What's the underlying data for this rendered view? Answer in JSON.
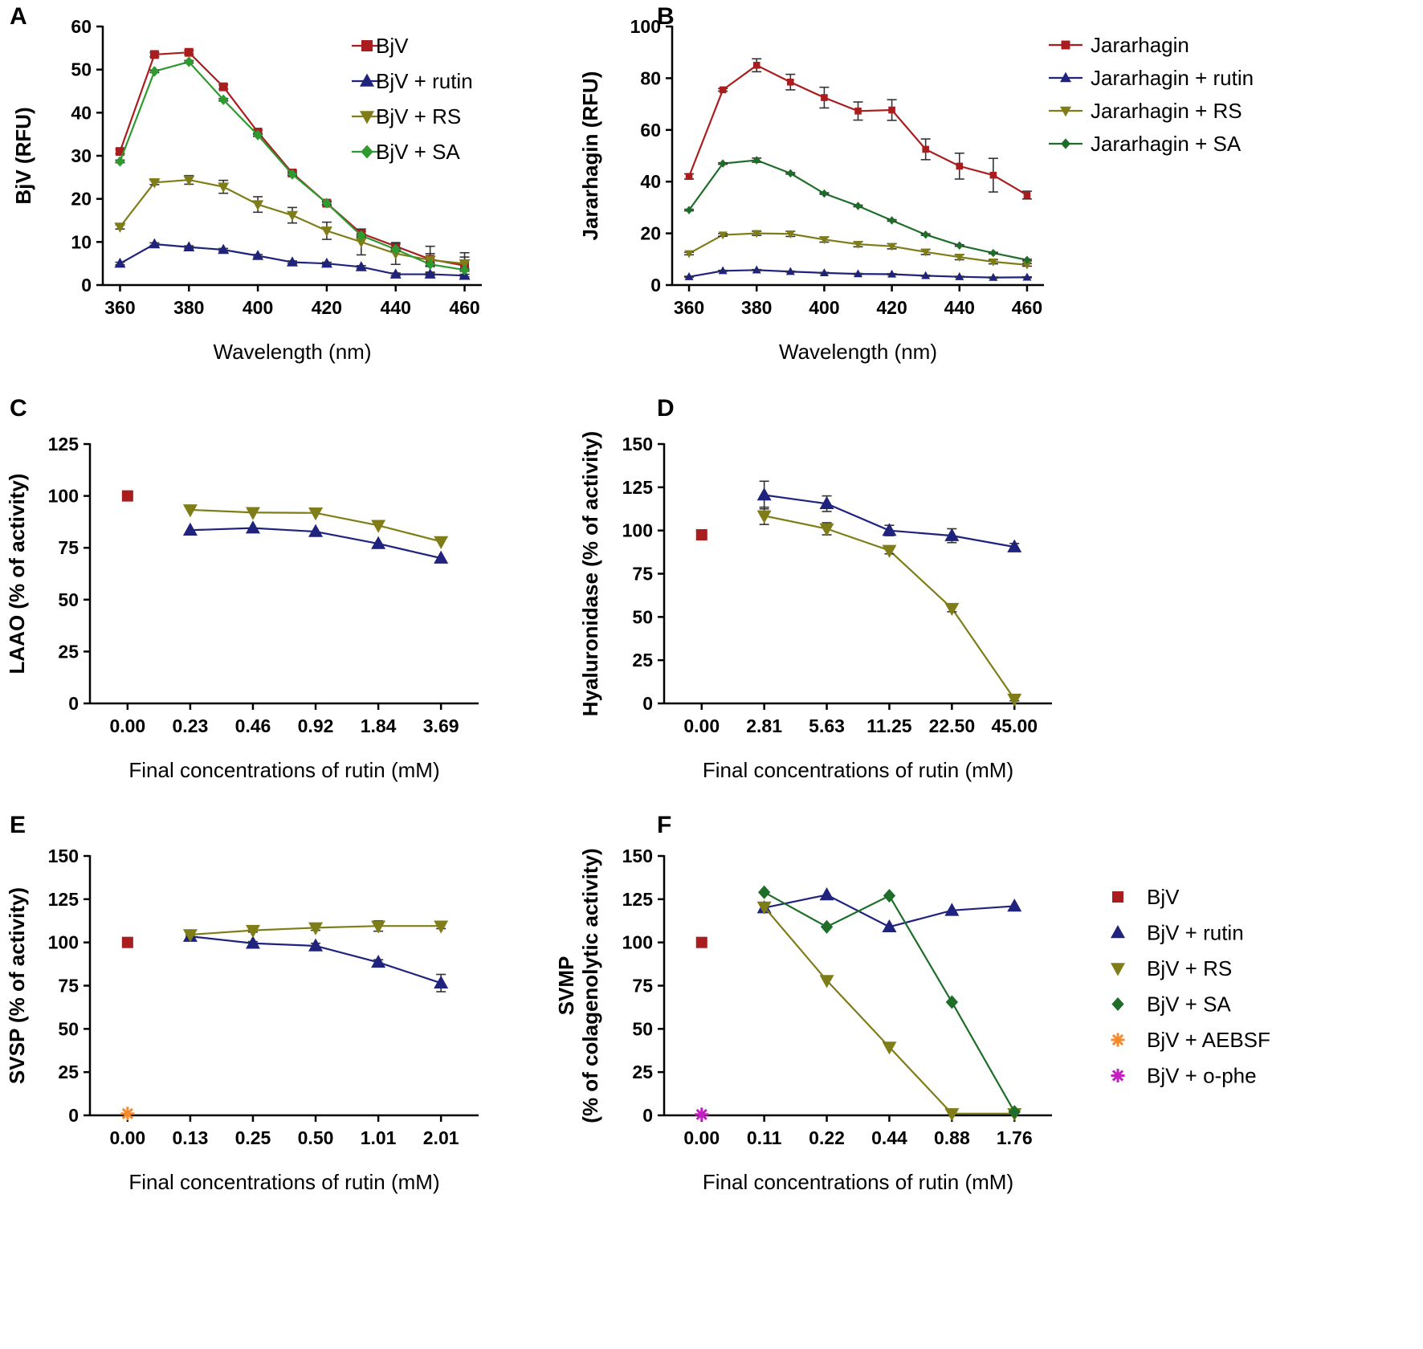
{
  "colors": {
    "BjV": "#AA1D1F",
    "rutin": "#1F237E",
    "RS": "#7E7D17",
    "SA": "#1E6E2A",
    "SA_bright": "#2E9A30",
    "AEBSF": "#F68B2C",
    "ophe": "#C21FC0"
  },
  "chart_data": [
    {
      "id": "A",
      "panel_label": "A",
      "type": "line",
      "ylabel": "BjV (RFU)",
      "xlabel": "Wavelength (nm)",
      "x": [
        360,
        370,
        380,
        390,
        400,
        410,
        420,
        430,
        440,
        450,
        460
      ],
      "xlim": [
        355,
        465
      ],
      "xticks": [
        360,
        380,
        400,
        420,
        440,
        460
      ],
      "xtick_labels": [
        "360",
        "380",
        "400",
        "420",
        "440",
        "460"
      ],
      "ylim": [
        0,
        60
      ],
      "yticks": [
        0,
        10,
        20,
        30,
        40,
        50,
        60
      ],
      "ytick_labels": [
        "0",
        "10",
        "20",
        "30",
        "40",
        "50",
        "60"
      ],
      "legend_position": "top-right",
      "series": [
        {
          "name": "BjV",
          "color_key": "BjV",
          "marker": "square",
          "values": [
            31,
            53.5,
            54,
            46,
            35.5,
            26,
            19,
            12,
            9,
            6,
            4.5
          ],
          "err": [
            0.5,
            0.5,
            0.5,
            0.5,
            0.5,
            0.5,
            0.5,
            0.5,
            0.5,
            3,
            3
          ]
        },
        {
          "name": "BjV + rutin",
          "color_key": "rutin",
          "marker": "triangle-up",
          "values": [
            5,
            9.5,
            8.8,
            8.2,
            6.8,
            5.3,
            5,
            4.2,
            2.5,
            2.5,
            2.2
          ],
          "err": [
            0.3,
            0.3,
            0.3,
            0.3,
            0.3,
            0.3,
            0.3,
            0.3,
            0.3,
            0.3,
            0.3
          ]
        },
        {
          "name": "BjV + RS",
          "color_key": "RS",
          "marker": "triangle-down",
          "values": [
            13.5,
            23.8,
            24.4,
            22.8,
            18.7,
            16.2,
            12.6,
            10,
            7.3,
            5.8,
            5
          ],
          "err": [
            0.5,
            0.5,
            1,
            1.5,
            1.8,
            1.8,
            2,
            3,
            2.5,
            1.5,
            1.5
          ]
        },
        {
          "name": "BjV + SA",
          "color_key": "SA_bright",
          "marker": "diamond",
          "values": [
            28.7,
            49.6,
            51.8,
            43,
            34.8,
            25.7,
            19,
            11.5,
            8.3,
            4.8,
            3.5
          ],
          "err": [
            0.3,
            0.3,
            0.3,
            0.3,
            0.3,
            0.3,
            0.3,
            0.3,
            0.3,
            0.3,
            0.3
          ]
        }
      ]
    },
    {
      "id": "B",
      "panel_label": "B",
      "type": "line",
      "ylabel": "Jararhagin (RFU)",
      "xlabel": "Wavelength (nm)",
      "x": [
        360,
        370,
        380,
        390,
        400,
        410,
        420,
        430,
        440,
        450,
        460
      ],
      "xlim": [
        355,
        465
      ],
      "xticks": [
        360,
        380,
        400,
        420,
        440,
        460
      ],
      "xtick_labels": [
        "360",
        "380",
        "400",
        "420",
        "440",
        "460"
      ],
      "ylim": [
        0,
        100
      ],
      "yticks": [
        0,
        20,
        40,
        60,
        80,
        100
      ],
      "ytick_labels": [
        "0",
        "20",
        "40",
        "60",
        "80",
        "100"
      ],
      "legend_position": "top-right",
      "series": [
        {
          "name": "Jararhagin",
          "color_key": "BjV",
          "marker": "square",
          "values": [
            42,
            75.5,
            85,
            78.5,
            72.5,
            67.3,
            67.7,
            52.5,
            46,
            42.5,
            34.8
          ],
          "err": [
            1,
            0.5,
            2.5,
            3,
            4,
            3.5,
            4,
            4,
            5,
            6.5,
            1.5
          ]
        },
        {
          "name": "Jararhagin + rutin",
          "color_key": "rutin",
          "marker": "triangle-up",
          "values": [
            3.2,
            5.5,
            5.8,
            5.2,
            4.7,
            4.3,
            4.2,
            3.6,
            3.2,
            2.9,
            3
          ],
          "err": [
            0.2,
            0.2,
            0.2,
            0.2,
            0.2,
            0.2,
            0.2,
            0.2,
            0.2,
            0.2,
            0.2
          ]
        },
        {
          "name": "Jararhagin + RS",
          "color_key": "RS",
          "marker": "triangle-down",
          "values": [
            12.2,
            19.4,
            20,
            19.8,
            17.6,
            15.8,
            15,
            12.8,
            10.8,
            9,
            7.8
          ],
          "err": [
            0.5,
            0.5,
            0.8,
            1,
            1,
            1,
            1,
            1,
            1,
            0.8,
            0.5
          ]
        },
        {
          "name": "Jararhagin + SA",
          "color_key": "SA",
          "marker": "diamond",
          "values": [
            29,
            47,
            48.3,
            43.2,
            35.4,
            30.6,
            25,
            19.5,
            15.3,
            12.4,
            9.7
          ],
          "err": [
            0.3,
            0.3,
            0.8,
            0.3,
            0.3,
            0.3,
            0.3,
            0.3,
            0.3,
            0.3,
            0.3
          ]
        }
      ]
    },
    {
      "id": "C",
      "panel_label": "C",
      "type": "line",
      "ylabel": "LAAO (% of activity)",
      "xlabel": "Final concentrations of rutin (mM)",
      "categories": [
        "0.00",
        "0.23",
        "0.46",
        "0.92",
        "1.84",
        "3.69"
      ],
      "ylim": [
        0,
        125
      ],
      "yticks": [
        0,
        25,
        50,
        75,
        100,
        125
      ],
      "ytick_labels": [
        "0",
        "25",
        "50",
        "75",
        "100",
        "125"
      ],
      "series": [
        {
          "name": "BjV",
          "color_key": "BjV",
          "marker": "square",
          "values": [
            100,
            null,
            null,
            null,
            null,
            null
          ]
        },
        {
          "name": "BjV + rutin",
          "color_key": "rutin",
          "marker": "triangle-up",
          "values": [
            null,
            83.5,
            84.5,
            82.8,
            77,
            70
          ]
        },
        {
          "name": "BjV + RS",
          "color_key": "RS",
          "marker": "triangle-down",
          "values": [
            null,
            93.3,
            92,
            91.8,
            85.8,
            78
          ]
        }
      ]
    },
    {
      "id": "D",
      "panel_label": "D",
      "type": "line",
      "ylabel": "Hyaluronidase (% of activity)",
      "xlabel": "Final concentrations of rutin (mM)",
      "categories": [
        "0.00",
        "2.81",
        "5.63",
        "11.25",
        "22.50",
        "45.00"
      ],
      "ylim": [
        0,
        150
      ],
      "yticks": [
        0,
        25,
        50,
        75,
        100,
        125,
        150
      ],
      "ytick_labels": [
        "0",
        "25",
        "50",
        "75",
        "100",
        "125",
        "150"
      ],
      "series": [
        {
          "name": "BjV",
          "color_key": "BjV",
          "marker": "square",
          "values": [
            97.5,
            null,
            null,
            null,
            null,
            null
          ]
        },
        {
          "name": "BjV + rutin",
          "color_key": "rutin",
          "marker": "triangle-up",
          "values": [
            null,
            120.5,
            115.5,
            100,
            97,
            90.5
          ],
          "err": [
            null,
            8,
            4.5,
            3,
            4,
            2
          ]
        },
        {
          "name": "BjV + RS",
          "color_key": "RS",
          "marker": "triangle-down",
          "values": [
            null,
            108.5,
            101,
            88.5,
            55,
            2.5
          ],
          "err": [
            null,
            5,
            3.5,
            2,
            2,
            1
          ]
        }
      ]
    },
    {
      "id": "E",
      "panel_label": "E",
      "type": "line",
      "ylabel": "SVSP (% of activity)",
      "xlabel": "Final concentrations of rutin (mM)",
      "categories": [
        "0.00",
        "0.13",
        "0.25",
        "0.50",
        "1.01",
        "2.01"
      ],
      "ylim": [
        0,
        150
      ],
      "yticks": [
        0,
        25,
        50,
        75,
        100,
        125,
        150
      ],
      "ytick_labels": [
        "0",
        "25",
        "50",
        "75",
        "100",
        "125",
        "150"
      ],
      "series": [
        {
          "name": "BjV",
          "color_key": "BjV",
          "marker": "square",
          "values": [
            100,
            null,
            null,
            null,
            null,
            null
          ]
        },
        {
          "name": "BjV + rutin",
          "color_key": "rutin",
          "marker": "triangle-up",
          "values": [
            null,
            103.5,
            99.5,
            98,
            88.5,
            76.5
          ],
          "err": [
            null,
            1,
            1,
            1.5,
            1.5,
            5
          ]
        },
        {
          "name": "BjV + RS",
          "color_key": "RS",
          "marker": "triangle-down",
          "values": [
            null,
            104.5,
            107,
            108.5,
            109.5,
            109.5
          ],
          "err": [
            null,
            1,
            1,
            1.5,
            3,
            1.5
          ]
        },
        {
          "name": "BjV + AEBSF",
          "color_key": "AEBSF",
          "marker": "asterisk",
          "values": [
            1,
            null,
            null,
            null,
            null,
            null
          ]
        }
      ]
    },
    {
      "id": "F",
      "panel_label": "F",
      "type": "line",
      "ylabel": "SVMP",
      "ylabel2": "(% of colagenolytic activity)",
      "xlabel": "Final concentrations of rutin (mM)",
      "categories": [
        "0.00",
        "0.11",
        "0.22",
        "0.44",
        "0.88",
        "1.76"
      ],
      "ylim": [
        0,
        150
      ],
      "yticks": [
        0,
        25,
        50,
        75,
        100,
        125,
        150
      ],
      "ytick_labels": [
        "0",
        "25",
        "50",
        "75",
        "100",
        "125",
        "150"
      ],
      "legend_position": "right",
      "series": [
        {
          "name": "BjV",
          "color_key": "BjV",
          "marker": "square",
          "values": [
            100,
            null,
            null,
            null,
            null,
            null
          ]
        },
        {
          "name": "BjV + rutin",
          "color_key": "rutin",
          "marker": "triangle-up",
          "values": [
            null,
            120,
            127.5,
            109,
            118.5,
            121
          ]
        },
        {
          "name": "BjV + RS",
          "color_key": "RS",
          "marker": "triangle-down",
          "values": [
            null,
            120.5,
            78,
            39.5,
            1,
            1
          ]
        },
        {
          "name": "BjV + SA",
          "color_key": "SA",
          "marker": "diamond",
          "values": [
            null,
            129,
            109,
            127,
            65.5,
            2
          ]
        },
        {
          "name": "BjV + AEBSF",
          "color_key": "AEBSF",
          "marker": "asterisk",
          "values": [
            null,
            null,
            null,
            null,
            null,
            null
          ]
        },
        {
          "name": "BjV + o-phe",
          "color_key": "ophe",
          "marker": "asterisk",
          "values": [
            0.5,
            null,
            null,
            null,
            null,
            null
          ]
        }
      ]
    }
  ]
}
